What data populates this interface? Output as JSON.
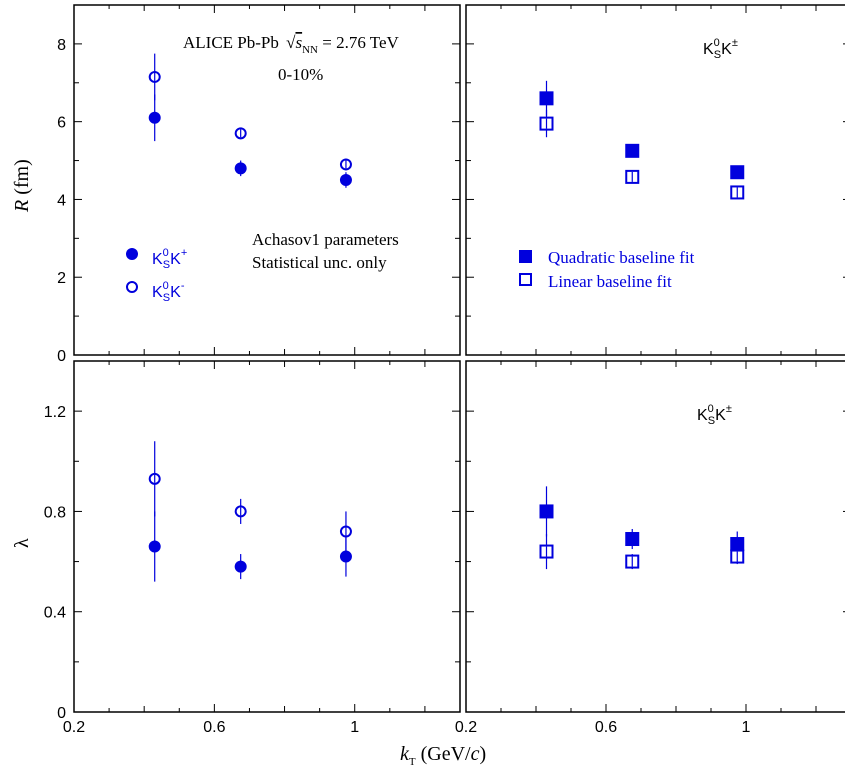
{
  "colors": {
    "marker": "#0000dd",
    "axis": "#000000"
  },
  "chart_data": [
    {
      "panel": "top-left",
      "type": "scatter",
      "ylim": [
        0,
        9
      ],
      "xlim": [
        0.2,
        1.3
      ],
      "yticks": [
        "0",
        "2",
        "4",
        "6",
        "8"
      ],
      "xticks": [],
      "ylabel_main": "R",
      "ylabel_unit": " (fm)",
      "annotation_title": "ALICE Pb-Pb",
      "annotation_sqrt": "s",
      "annotation_sub": "NN",
      "annotation_energy": " = 2.76 TeV",
      "annotation_centrality": "0-10%",
      "annotation_params_line1": "Achasov1 parameters",
      "annotation_params_line2": "Statistical unc. only",
      "series": [
        {
          "name": "K0SK+",
          "legend_base": "K",
          "legend_sup1": "0",
          "legend_sub1": "S",
          "legend_k2": "K",
          "legend_sup2": "+",
          "marker": "filled-circle",
          "x": [
            0.43,
            0.675,
            0.975
          ],
          "y": [
            6.1,
            4.8,
            4.5
          ],
          "err": [
            0.6,
            0.2,
            0.2
          ]
        },
        {
          "name": "K0SK-",
          "legend_base": "K",
          "legend_sup1": "0",
          "legend_sub1": "S",
          "legend_k2": "K",
          "legend_sup2": "-",
          "marker": "open-circle",
          "x": [
            0.43,
            0.675,
            0.975
          ],
          "y": [
            7.15,
            5.7,
            4.9
          ],
          "err": [
            0.6,
            0.15,
            0.15
          ]
        }
      ]
    },
    {
      "panel": "top-right",
      "type": "scatter",
      "ylim": [
        0,
        9
      ],
      "xlim": [
        0.2,
        1.3
      ],
      "particle_base": "K",
      "particle_sup1": "0",
      "particle_sub1": "S",
      "particle_k2": "K",
      "particle_sup2": "±",
      "series": [
        {
          "name": "Quadratic baseline fit",
          "marker": "filled-square",
          "x": [
            0.43,
            0.675,
            0.975
          ],
          "y": [
            6.6,
            5.25,
            4.7
          ],
          "err": [
            0.45,
            0.15,
            0.15
          ]
        },
        {
          "name": "Linear baseline fit",
          "marker": "open-square",
          "x": [
            0.43,
            0.675,
            0.975
          ],
          "y": [
            5.95,
            4.58,
            4.18
          ],
          "err": [
            0.35,
            0.15,
            0.15
          ]
        }
      ]
    },
    {
      "panel": "bottom-left",
      "type": "scatter",
      "ylim": [
        0,
        1.4
      ],
      "xlim": [
        0.2,
        1.3
      ],
      "yticks": [
        "0",
        "0.4",
        "0.8",
        "1.2"
      ],
      "xticks": [
        "0.2",
        "0.6",
        "1"
      ],
      "ylabel_main": "λ",
      "series": [
        {
          "name": "K0SK+",
          "marker": "filled-circle",
          "x": [
            0.43,
            0.675,
            0.975
          ],
          "y": [
            0.66,
            0.58,
            0.62
          ],
          "err": [
            0.14,
            0.05,
            0.08
          ]
        },
        {
          "name": "K0SK-",
          "marker": "open-circle",
          "x": [
            0.43,
            0.675,
            0.975
          ],
          "y": [
            0.93,
            0.8,
            0.72
          ],
          "err": [
            0.15,
            0.05,
            0.08
          ]
        }
      ]
    },
    {
      "panel": "bottom-right",
      "type": "scatter",
      "ylim": [
        0,
        1.4
      ],
      "xlim": [
        0.2,
        1.3
      ],
      "xticks": [
        "0.2",
        "0.6",
        "1"
      ],
      "particle_base": "K",
      "particle_sup1": "0",
      "particle_sub1": "S",
      "particle_k2": "K",
      "particle_sup2": "±",
      "series": [
        {
          "name": "Quadratic baseline fit",
          "marker": "filled-square",
          "x": [
            0.43,
            0.675,
            0.975
          ],
          "y": [
            0.8,
            0.69,
            0.67
          ],
          "err": [
            0.1,
            0.04,
            0.05
          ]
        },
        {
          "name": "Linear baseline fit",
          "marker": "open-square",
          "x": [
            0.43,
            0.675,
            0.975
          ],
          "y": [
            0.64,
            0.6,
            0.62
          ],
          "err": [
            0.07,
            0.03,
            0.03
          ]
        }
      ]
    }
  ],
  "xlabel_main": "k",
  "xlabel_sub": "T",
  "xlabel_unit": " (GeV/",
  "xlabel_c": "c",
  "xlabel_close": ")"
}
